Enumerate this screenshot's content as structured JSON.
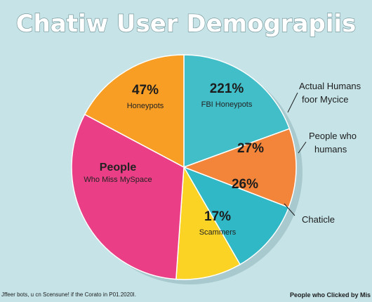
{
  "chart_data": {
    "type": "pie",
    "title": "Chatiw User Demograpiis",
    "slices": [
      {
        "pct_label": "221%",
        "name": "FBI Honeypots",
        "start": 0,
        "end": 70,
        "color": "#42bec9"
      },
      {
        "pct_label": "27%",
        "name": "",
        "start": 70,
        "end": 111,
        "color": "#f3853a"
      },
      {
        "pct_label": "26%",
        "name": "",
        "start": 111,
        "end": 150,
        "color": "#30b8c7"
      },
      {
        "pct_label": "17%",
        "name": "Scammers",
        "start": 150,
        "end": 184,
        "color": "#fad325"
      },
      {
        "pct_label": "People",
        "name": "Who Miss MySpace",
        "start": 184,
        "end": 298,
        "color": "#ea3f86"
      },
      {
        "pct_label": "47%",
        "name": "Honeypots",
        "start": 298,
        "end": 360,
        "color": "#f89e24"
      }
    ],
    "callouts": [
      {
        "lines": [
          "Actual Humans",
          "foor Mycice"
        ]
      },
      {
        "lines": [
          "People who",
          "humans"
        ]
      },
      {
        "lines": [
          "Chaticle"
        ]
      }
    ],
    "footer_left": "Jffeer bots, u cn Scensune! if the Corato in P01.2020I.",
    "footer_right": "People who Clicked by Mis"
  }
}
